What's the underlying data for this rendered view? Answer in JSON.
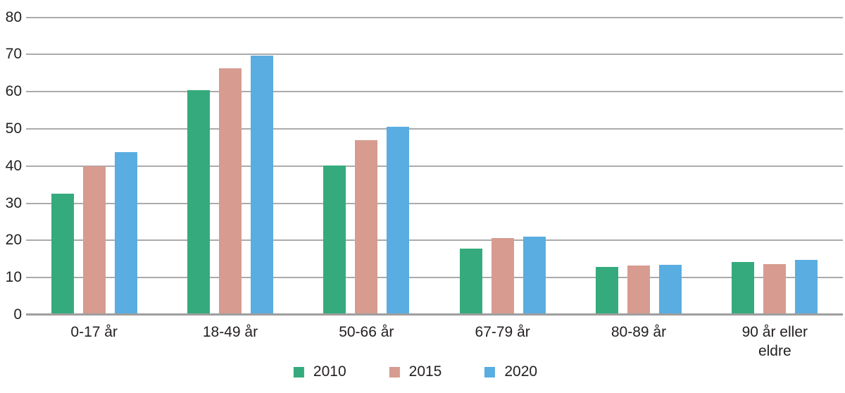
{
  "chart_data": {
    "type": "bar",
    "title": "",
    "categories": [
      "0-17 år",
      "18-49 år",
      "50-66 år",
      "67-79 år",
      "80-89 år",
      "90 år eller\neldre"
    ],
    "series": [
      {
        "name": "2010",
        "color": "#35ab7d",
        "values": [
          32.6,
          60.4,
          40.1,
          17.8,
          12.8,
          14.2
        ]
      },
      {
        "name": "2015",
        "color": "#d79b90",
        "values": [
          40.0,
          66.2,
          46.9,
          20.7,
          13.3,
          13.6
        ]
      },
      {
        "name": "2020",
        "color": "#5aade0",
        "values": [
          43.7,
          69.7,
          50.6,
          21.0,
          13.4,
          14.8
        ]
      }
    ],
    "ylim": [
      0,
      80
    ],
    "yticks": [
      0,
      10,
      20,
      30,
      40,
      50,
      60,
      70,
      80
    ],
    "grid": true,
    "legend_position": "bottom",
    "xlabel": "",
    "ylabel": ""
  },
  "colors": {
    "background": "#ffffff",
    "gridline": "#ababab",
    "axisline": "#9e9e9e",
    "text": "#231f20"
  }
}
